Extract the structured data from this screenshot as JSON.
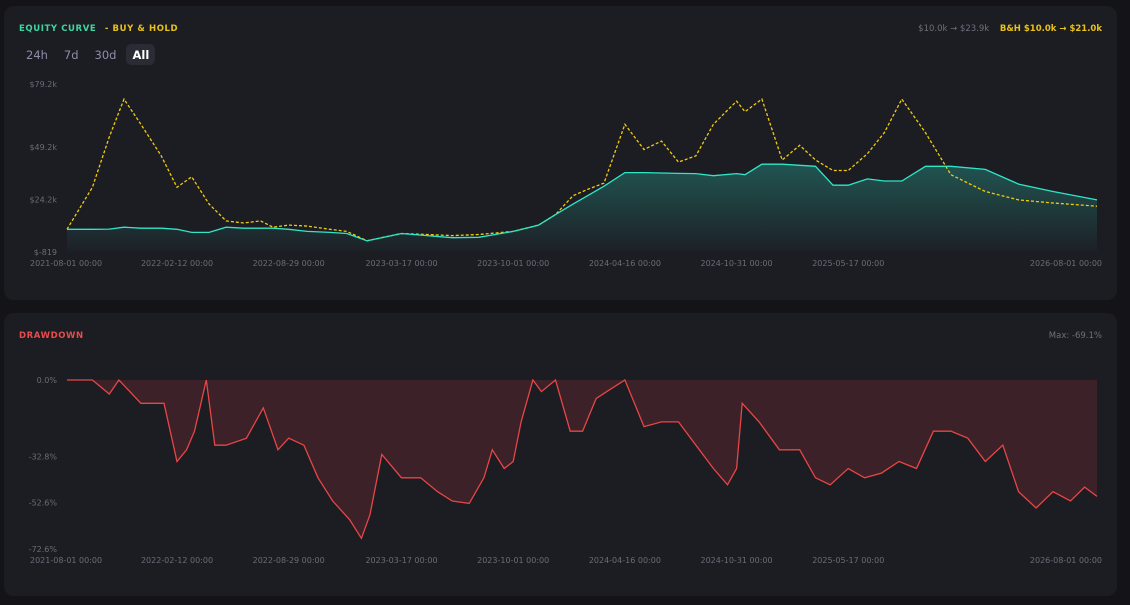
{
  "equity": {
    "title": "EQUITY CURVE",
    "bh_legend": "- BUY & HOLD",
    "strategy_summary": "$10.0k → $23.9k",
    "bh_summary": "B&H $10.0k → $21.0k",
    "tabs": [
      {
        "label": "24h",
        "active": false
      },
      {
        "label": "7d",
        "active": false
      },
      {
        "label": "30d",
        "active": false
      },
      {
        "label": "All",
        "active": true
      }
    ]
  },
  "drawdown": {
    "title": "DRAWDOWN",
    "max_label": "Max: -69.1%"
  },
  "colors": {
    "strategy": "#2ee6c8",
    "buy_hold": "#f2cc0c",
    "drawdown": "#e84545",
    "panel": "#1c1c23",
    "background": "#141418"
  },
  "chart_data": [
    {
      "type": "line",
      "x_ticks": [
        "2021-08-01 00:00",
        "2022-02-12 00:00",
        "2022-08-29 00:00",
        "2023-03-17 00:00",
        "2023-10-01 00:00",
        "2024-04-16 00:00",
        "2024-10-31 00:00",
        "2025-05-17 00:00",
        "2026-08-01 00:00"
      ],
      "y_ticks": [
        "$79.2k",
        "$49.2k",
        "$24.2k",
        "$-819"
      ],
      "ylim": [
        -819,
        79200
      ],
      "x": [
        "2021-08-01",
        "2021-09-15",
        "2021-10-15",
        "2021-11-10",
        "2021-12-10",
        "2022-01-15",
        "2022-02-12",
        "2022-03-10",
        "2022-04-10",
        "2022-05-10",
        "2022-06-10",
        "2022-07-10",
        "2022-08-01",
        "2022-08-29",
        "2022-10-01",
        "2022-11-10",
        "2022-12-10",
        "2023-01-15",
        "2023-03-17",
        "2023-05-01",
        "2023-06-15",
        "2023-08-01",
        "2023-10-01",
        "2023-11-15",
        "2023-12-15",
        "2024-01-15",
        "2024-02-10",
        "2024-03-10",
        "2024-04-16",
        "2024-05-20",
        "2024-06-20",
        "2024-07-20",
        "2024-08-20",
        "2024-09-20",
        "2024-10-31",
        "2024-11-15",
        "2024-12-15",
        "2025-01-20",
        "2025-02-20",
        "2025-03-20",
        "2025-04-20",
        "2025-05-17",
        "2025-06-20",
        "2025-07-20",
        "2025-08-20",
        "2025-10-01",
        "2025-11-15",
        "2026-01-15",
        "2026-03-15",
        "2026-05-15",
        "2026-08-01"
      ],
      "series": [
        {
          "name": "EQUITY CURVE",
          "values": [
            10000,
            10000,
            10100,
            11000,
            10500,
            10500,
            10000,
            8500,
            8500,
            11000,
            10500,
            10500,
            10500,
            10000,
            9000,
            8500,
            8000,
            4500,
            8000,
            7000,
            6000,
            6200,
            9000,
            12000,
            17000,
            22000,
            26000,
            30500,
            37000,
            37000,
            36800,
            36600,
            36500,
            35500,
            36500,
            36000,
            41000,
            41000,
            40500,
            40000,
            31000,
            31000,
            34000,
            33000,
            33000,
            40000,
            40000,
            38500,
            31500,
            28000,
            24000
          ]
        },
        {
          "name": "BUY & HOLD",
          "values": [
            10000,
            30000,
            54000,
            72000,
            60000,
            45000,
            30000,
            35000,
            22000,
            14000,
            13000,
            14000,
            11000,
            12000,
            11500,
            10000,
            9000,
            4500,
            8000,
            7500,
            7000,
            7500,
            9000,
            12000,
            17000,
            26000,
            29000,
            32000,
            60000,
            48000,
            52000,
            42000,
            45000,
            60000,
            71000,
            66000,
            72000,
            43000,
            50000,
            43000,
            38000,
            38000,
            46000,
            56000,
            72000,
            56000,
            36000,
            28000,
            24000,
            22500,
            21000
          ]
        }
      ]
    },
    {
      "type": "area",
      "title": "DRAWDOWN",
      "x_ticks": [
        "2021-08-01 00:00",
        "2022-02-12 00:00",
        "2022-08-29 00:00",
        "2023-03-17 00:00",
        "2023-10-01 00:00",
        "2024-04-16 00:00",
        "2024-10-31 00:00",
        "2025-05-17 00:00",
        "2026-08-01 00:00"
      ],
      "y_ticks": [
        "0.0%",
        "-32.8%",
        "-52.6%",
        "-72.6%"
      ],
      "ylim": [
        -72.6,
        0
      ],
      "x": [
        "2021-08-01",
        "2021-09-15",
        "2021-10-15",
        "2021-11-01",
        "2021-12-10",
        "2022-01-20",
        "2022-02-12",
        "2022-03-01",
        "2022-03-15",
        "2022-04-05",
        "2022-04-20",
        "2022-05-10",
        "2022-06-15",
        "2022-07-15",
        "2022-08-10",
        "2022-08-29",
        "2022-09-25",
        "2022-10-20",
        "2022-11-15",
        "2022-12-15",
        "2023-01-05",
        "2023-01-20",
        "2023-02-10",
        "2023-03-17",
        "2023-04-20",
        "2023-05-20",
        "2023-06-15",
        "2023-07-15",
        "2023-08-10",
        "2023-08-25",
        "2023-09-15",
        "2023-10-01",
        "2023-10-15",
        "2023-11-05",
        "2023-11-20",
        "2023-12-15",
        "2024-01-10",
        "2024-02-01",
        "2024-02-25",
        "2024-03-15",
        "2024-04-16",
        "2024-05-20",
        "2024-06-20",
        "2024-07-20",
        "2024-08-20",
        "2024-09-20",
        "2024-10-15",
        "2024-10-31",
        "2024-11-10",
        "2024-12-10",
        "2025-01-15",
        "2025-02-20",
        "2025-03-20",
        "2025-04-15",
        "2025-05-17",
        "2025-06-15",
        "2025-07-15",
        "2025-08-15",
        "2025-09-15",
        "2025-10-15",
        "2025-11-15",
        "2025-12-15",
        "2026-01-15",
        "2026-02-15",
        "2026-03-15",
        "2026-04-15",
        "2026-05-15",
        "2026-06-15",
        "2026-07-10",
        "2026-08-01"
      ],
      "values": [
        0,
        0,
        -6,
        0,
        -10,
        -10,
        -35,
        -30,
        -22,
        0,
        -28,
        -28,
        -25,
        -12,
        -30,
        -25,
        -28,
        -42,
        -52,
        -60,
        -68,
        -58,
        -32,
        -42,
        -42,
        -48,
        -52,
        -53,
        -42,
        -30,
        -38,
        -35,
        -18,
        0,
        -5,
        0,
        -22,
        -22,
        -8,
        -5,
        0,
        -20,
        -18,
        -18,
        -28,
        -38,
        -45,
        -38,
        -10,
        -18,
        -30,
        -30,
        -42,
        -45,
        -38,
        -42,
        -40,
        -35,
        -38,
        -22,
        -22,
        -25,
        -35,
        -28,
        -48,
        -55,
        -48,
        -52,
        -46,
        -50
      ]
    }
  ]
}
